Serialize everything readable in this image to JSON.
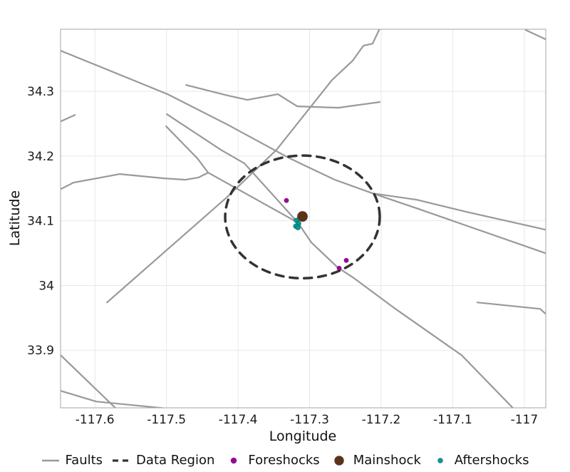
{
  "chart_data": {
    "type": "scatter",
    "title": "",
    "xlabel": "Longitude",
    "ylabel": "Latitude",
    "xlim": [
      -117.648,
      -116.97
    ],
    "ylim": [
      33.811,
      34.396
    ],
    "grid": true,
    "legend_position": "bottom",
    "x_ticks": {
      "values": [
        -117.6,
        -117.5,
        -117.4,
        -117.3,
        -117.2,
        -117.1,
        -117.0
      ],
      "labels": [
        "-117.6",
        "-117.5",
        "-117.4",
        "-117.3",
        "-117.2",
        "-117.1",
        "-117"
      ]
    },
    "y_ticks": {
      "values": [
        34.3,
        34.2,
        34.1,
        34.0,
        33.9
      ],
      "labels": [
        "34.3",
        "34.2",
        "34.1",
        "34",
        "33.9"
      ]
    },
    "colors": {
      "faults": "#999999",
      "data_region": "#333333",
      "foreshocks": "#A000A0",
      "mainshock": "#5C3317",
      "aftershocks": "#009999",
      "grid": "#E8E8E8",
      "border": "#A6A6A6",
      "text": "#1A1A1A"
    },
    "faults": {
      "name": "Faults",
      "polylines": [
        [
          [
            -117.6478,
            34.3628
          ],
          [
            -117.4985,
            34.2956
          ],
          [
            -117.4139,
            34.2482
          ],
          [
            -117.3313,
            34.1986
          ],
          [
            -117.3045,
            34.1843
          ],
          [
            -117.2647,
            34.1634
          ],
          [
            -117.2119,
            34.1424
          ]
        ],
        [
          [
            -117.2119,
            34.1424
          ],
          [
            -117.1502,
            34.1325
          ],
          [
            -117.0806,
            34.1138
          ],
          [
            -116.9701,
            34.0862
          ]
        ],
        [
          [
            -117.2119,
            34.1424
          ],
          [
            -117.1502,
            34.1193
          ],
          [
            -116.9701,
            34.0499
          ]
        ],
        [
          [
            -117.4995,
            34.2647
          ],
          [
            -117.4239,
            34.2096
          ],
          [
            -117.391,
            34.1887
          ],
          [
            -117.3164,
            34.0972
          ],
          [
            -117.2975,
            34.0664
          ],
          [
            -117.2607,
            34.0278
          ],
          [
            -117.2378,
            34.0113
          ],
          [
            -117.1801,
            33.9639
          ],
          [
            -117.0876,
            33.8923
          ],
          [
            -117.0129,
            33.8074
          ]
        ],
        [
          [
            -117.5005,
            34.246
          ],
          [
            -117.4567,
            34.1964
          ],
          [
            -117.4418,
            34.1744
          ],
          [
            -117.3164,
            34.0972
          ]
        ],
        [
          [
            -117.6478,
            34.149
          ],
          [
            -117.6299,
            34.159
          ],
          [
            -117.5811,
            34.1689
          ],
          [
            -117.5652,
            34.1722
          ],
          [
            -117.5035,
            34.1656
          ],
          [
            -117.4736,
            34.1634
          ],
          [
            -117.4557,
            34.1667
          ],
          [
            -117.4418,
            34.1744
          ]
        ],
        [
          [
            -117.5831,
            33.9738
          ],
          [
            -117.4139,
            34.138
          ],
          [
            -117.3463,
            34.2096
          ],
          [
            -117.2687,
            34.3176
          ],
          [
            -117.2398,
            34.3474
          ],
          [
            -117.2249,
            34.3705
          ],
          [
            -117.2119,
            34.3738
          ],
          [
            -117.203,
            34.3948
          ]
        ],
        [
          [
            -117.4726,
            34.3099
          ],
          [
            -117.4139,
            34.2934
          ],
          [
            -117.387,
            34.2868
          ],
          [
            -117.3443,
            34.2956
          ],
          [
            -117.3174,
            34.2769
          ],
          [
            -117.2597,
            34.2747
          ],
          [
            -117.202,
            34.2835
          ]
        ],
        [
          [
            -116.998,
            34.3948
          ],
          [
            -116.9701,
            34.3804
          ]
        ],
        [
          [
            -117.6478,
            34.2537
          ],
          [
            -117.6279,
            34.2636
          ]
        ],
        [
          [
            -117.0657,
            33.9738
          ],
          [
            -116.9781,
            33.9639
          ],
          [
            -116.9701,
            33.9562
          ]
        ],
        [
          [
            -117.6478,
            33.8923
          ],
          [
            -117.5712,
            33.8107
          ]
        ],
        [
          [
            -117.6478,
            33.8372
          ],
          [
            -117.598,
            33.8207
          ],
          [
            -117.5055,
            33.8107
          ]
        ]
      ]
    },
    "data_region": {
      "name": "Data Region",
      "center": [
        -117.31,
        34.106
      ],
      "rx_deg": 0.108,
      "ry_deg": 0.0948
    },
    "series": [
      {
        "key": "foreshocks",
        "name": "Foreshocks",
        "color": "#A000A0",
        "marker_size": 3.2,
        "points": [
          [
            -117.3324,
            34.1314
          ],
          [
            -117.2587,
            34.0267
          ],
          [
            -117.2488,
            34.0388
          ]
        ]
      },
      {
        "key": "mainshock",
        "name": "Mainshock",
        "color": "#5C3317",
        "marker_size": 7.2,
        "points": [
          [
            -117.31,
            34.1067
          ]
        ]
      },
      {
        "key": "aftershocks",
        "name": "Aftershocks",
        "color": "#009999",
        "marker_size": 3.5,
        "points": [
          [
            -117.3184,
            34.1006
          ],
          [
            -117.3154,
            34.0956
          ],
          [
            -117.3194,
            34.0917
          ],
          [
            -117.3164,
            34.0895
          ]
        ]
      }
    ],
    "legend": [
      {
        "label": "Faults",
        "swatch": "line",
        "color": "#999999"
      },
      {
        "label": "Data Region",
        "swatch": "dashed-line",
        "color": "#333333"
      },
      {
        "label": "Foreshocks",
        "swatch": "dot",
        "color": "#A000A0",
        "size": 4
      },
      {
        "label": "Mainshock",
        "swatch": "dot",
        "color": "#5C3317",
        "size": 6.5
      },
      {
        "label": "Aftershocks",
        "swatch": "dot",
        "color": "#009999",
        "size": 3.5
      }
    ]
  }
}
